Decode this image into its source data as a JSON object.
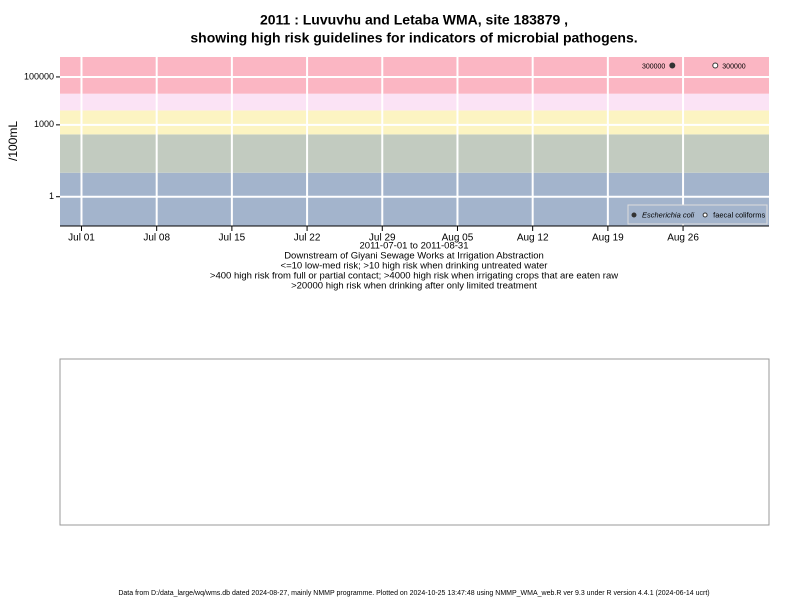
{
  "chart_data": {
    "type": "scatter",
    "title": [
      "2011 : Luvuvhu and Letaba WMA, site 183879 ,",
      "showing high risk guidelines for indicators of microbial pathogens."
    ],
    "ylabel": "/100mL",
    "xlabel": [
      "2011-07-01 to 2011-08-31",
      "Downstream of Giyani Sewage Works at Irrigation Abstraction",
      "<=10 low-med risk; >10 high risk when drinking untreated water",
      ">400 high risk from full or partial contact; >4000 high risk when irrigating crops that are eaten raw",
      ">20000 high risk when drinking after only limited treatment"
    ],
    "ylog": true,
    "ylim": [
      0.06,
      680000
    ],
    "yticks": [
      1,
      1000,
      100000
    ],
    "xlim": [
      "2011-06-29",
      "2011-09-03"
    ],
    "xticks": [
      {
        "value": "2011-07-01",
        "label": "Jul 01"
      },
      {
        "value": "2011-07-08",
        "label": "Jul 08"
      },
      {
        "value": "2011-07-15",
        "label": "Jul 15"
      },
      {
        "value": "2011-07-22",
        "label": "Jul 22"
      },
      {
        "value": "2011-07-29",
        "label": "Jul 29"
      },
      {
        "value": "2011-08-05",
        "label": "Aug 05"
      },
      {
        "value": "2011-08-12",
        "label": "Aug 12"
      },
      {
        "value": "2011-08-19",
        "label": "Aug 19"
      },
      {
        "value": "2011-08-26",
        "label": "Aug 26"
      }
    ],
    "grid": true,
    "risk_thresholds": [
      10,
      400,
      4000,
      20000
    ],
    "band_colors": [
      "#a3b4cc",
      "#c2cbc0",
      "#fcf4c2",
      "#fbe3f5",
      "#fbb6c3"
    ],
    "legend": "bottom-right",
    "series": [
      {
        "name": "Escherichia coli",
        "color": "#333333",
        "marker": "filled",
        "x": [
          "2011-08-25"
        ],
        "values": [
          300000
        ]
      },
      {
        "name": "faecal coliforms",
        "color": "#333333",
        "marker": "open",
        "x": [
          "2011-08-29"
        ],
        "values": [
          300000
        ]
      }
    ]
  },
  "footer": "Data from D:/data_large/wq/wms.db dated 2024-08-27, mainly NMMP programme. Plotted on 2024-10-25 13:47:48 using NMMP_WMA_web.R ver 9.3 under R version 4.4.1 (2024-06-14 ucrt)"
}
